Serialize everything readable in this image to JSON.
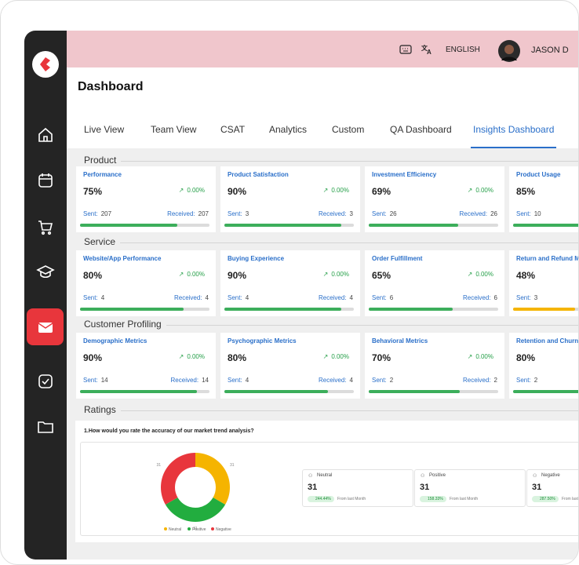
{
  "header": {
    "language": "ENGLISH",
    "user": "JASON D"
  },
  "page": {
    "title": "Dashboard"
  },
  "tabs": [
    "Live View",
    "Team View",
    "CSAT",
    "Analytics",
    "Custom",
    "QA Dashboard",
    "Insights Dashboard"
  ],
  "active_tab": 6,
  "labels": {
    "sent": "Sent:",
    "received": "Received:"
  },
  "sections": [
    {
      "title": "Product",
      "cards": [
        {
          "title": "Performance",
          "percent": {
            "value": 75,
            "label": "75%"
          },
          "trend": "0.00%",
          "sent": "207",
          "received": "207"
        },
        {
          "title": "Product Satisfaction",
          "percent": {
            "value": 90,
            "label": "90%"
          },
          "trend": "0.00%",
          "sent": "3",
          "received": "3"
        },
        {
          "title": "Investment Efficiency",
          "percent": {
            "value": 69,
            "label": "69%"
          },
          "trend": "0.00%",
          "sent": "26",
          "received": "26"
        },
        {
          "title": "Product Usage",
          "percent": {
            "value": 85,
            "label": "85%"
          },
          "sent": "10"
        }
      ]
    },
    {
      "title": "Service",
      "cards": [
        {
          "title": "Website/App Performance",
          "percent": {
            "value": 80,
            "label": "80%"
          },
          "trend": "0.00%",
          "sent": "4",
          "received": "4"
        },
        {
          "title": "Buying Experience",
          "percent": {
            "value": 90,
            "label": "90%"
          },
          "trend": "0.00%",
          "sent": "4",
          "received": "4"
        },
        {
          "title": "Order Fulfillment",
          "percent": {
            "value": 65,
            "label": "65%"
          },
          "trend": "0.00%",
          "sent": "6",
          "received": "6"
        },
        {
          "title": "Return and Refund Me",
          "percent": {
            "value": 48,
            "label": "48%"
          },
          "sent": "3",
          "color": "#f5b400"
        }
      ]
    },
    {
      "title": "Customer Profiling",
      "cards": [
        {
          "title": "Demographic Metrics",
          "percent": {
            "value": 90,
            "label": "90%"
          },
          "trend": "0.00%",
          "sent": "14",
          "received": "14"
        },
        {
          "title": "Psychographic Metrics",
          "percent": {
            "value": 80,
            "label": "80%"
          },
          "trend": "0.00%",
          "sent": "4",
          "received": "4"
        },
        {
          "title": "Behavioral Metrics",
          "percent": {
            "value": 70,
            "label": "70%"
          },
          "trend": "0.00%",
          "sent": "2",
          "received": "2"
        },
        {
          "title": "Retention and Churn M",
          "percent": {
            "value": 80,
            "label": "80%"
          },
          "sent": "2"
        }
      ]
    }
  ],
  "ratings": {
    "title": "Ratings",
    "question": "1.How would you rate the accuracy of our market trend analysis?",
    "donut": {
      "names": [
        "Neutral",
        "Positive",
        "Negative"
      ],
      "values": [
        31,
        31,
        31
      ],
      "colors": [
        "#f5b400",
        "#22ad3f",
        "#e8363c"
      ]
    },
    "stats": [
      {
        "change": "244.44%",
        "note": "From last Month"
      },
      {
        "change": "158.33%",
        "note": "From last Month"
      },
      {
        "change": "287.50%",
        "note": "From last M"
      }
    ]
  }
}
